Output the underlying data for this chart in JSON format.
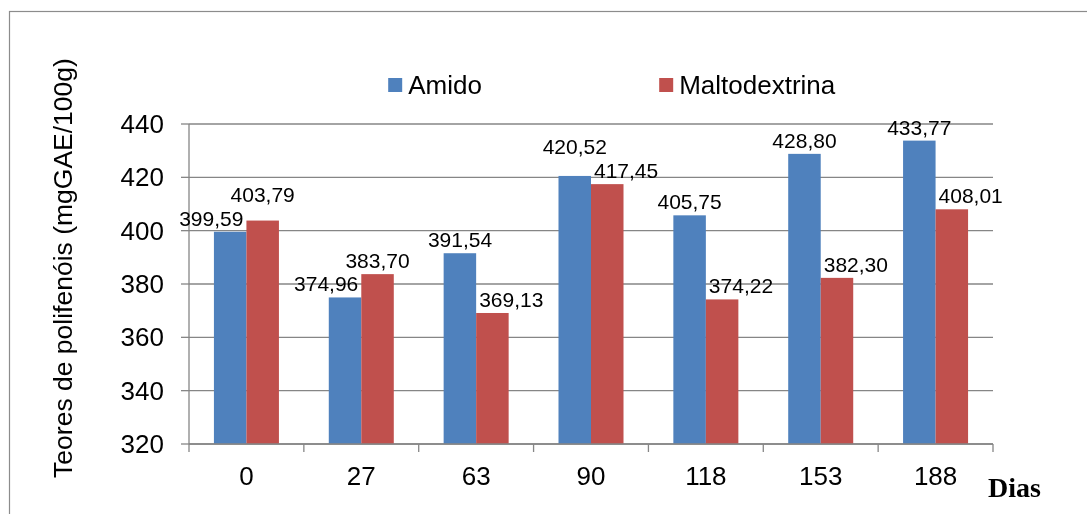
{
  "chart_data": {
    "type": "bar",
    "categories": [
      "0",
      "27",
      "63",
      "90",
      "118",
      "153",
      "188"
    ],
    "series": [
      {
        "name": "Amido",
        "color": "#4f81bd",
        "values": [
          399.59,
          374.96,
          391.54,
          420.52,
          405.75,
          428.8,
          433.77
        ],
        "value_labels": [
          "399,59",
          "374,96",
          "391,54",
          "420,52",
          "405,75",
          "428,80",
          "433,77"
        ]
      },
      {
        "name": "Maltodextrina",
        "color": "#c0504d",
        "values": [
          403.79,
          383.7,
          369.13,
          417.45,
          374.22,
          382.3,
          408.01
        ],
        "value_labels": [
          "403,79",
          "383,70",
          "369,13",
          "417,45",
          "374,22",
          "382,30",
          "408,01"
        ]
      }
    ],
    "xlabel": "Dias",
    "ylabel": "Teores de polifenóis (mgGAE/100g)",
    "ylim": [
      320,
      440
    ],
    "yticks": [
      320,
      340,
      360,
      380,
      400,
      420,
      440
    ],
    "grid": "y",
    "legend": "top"
  }
}
